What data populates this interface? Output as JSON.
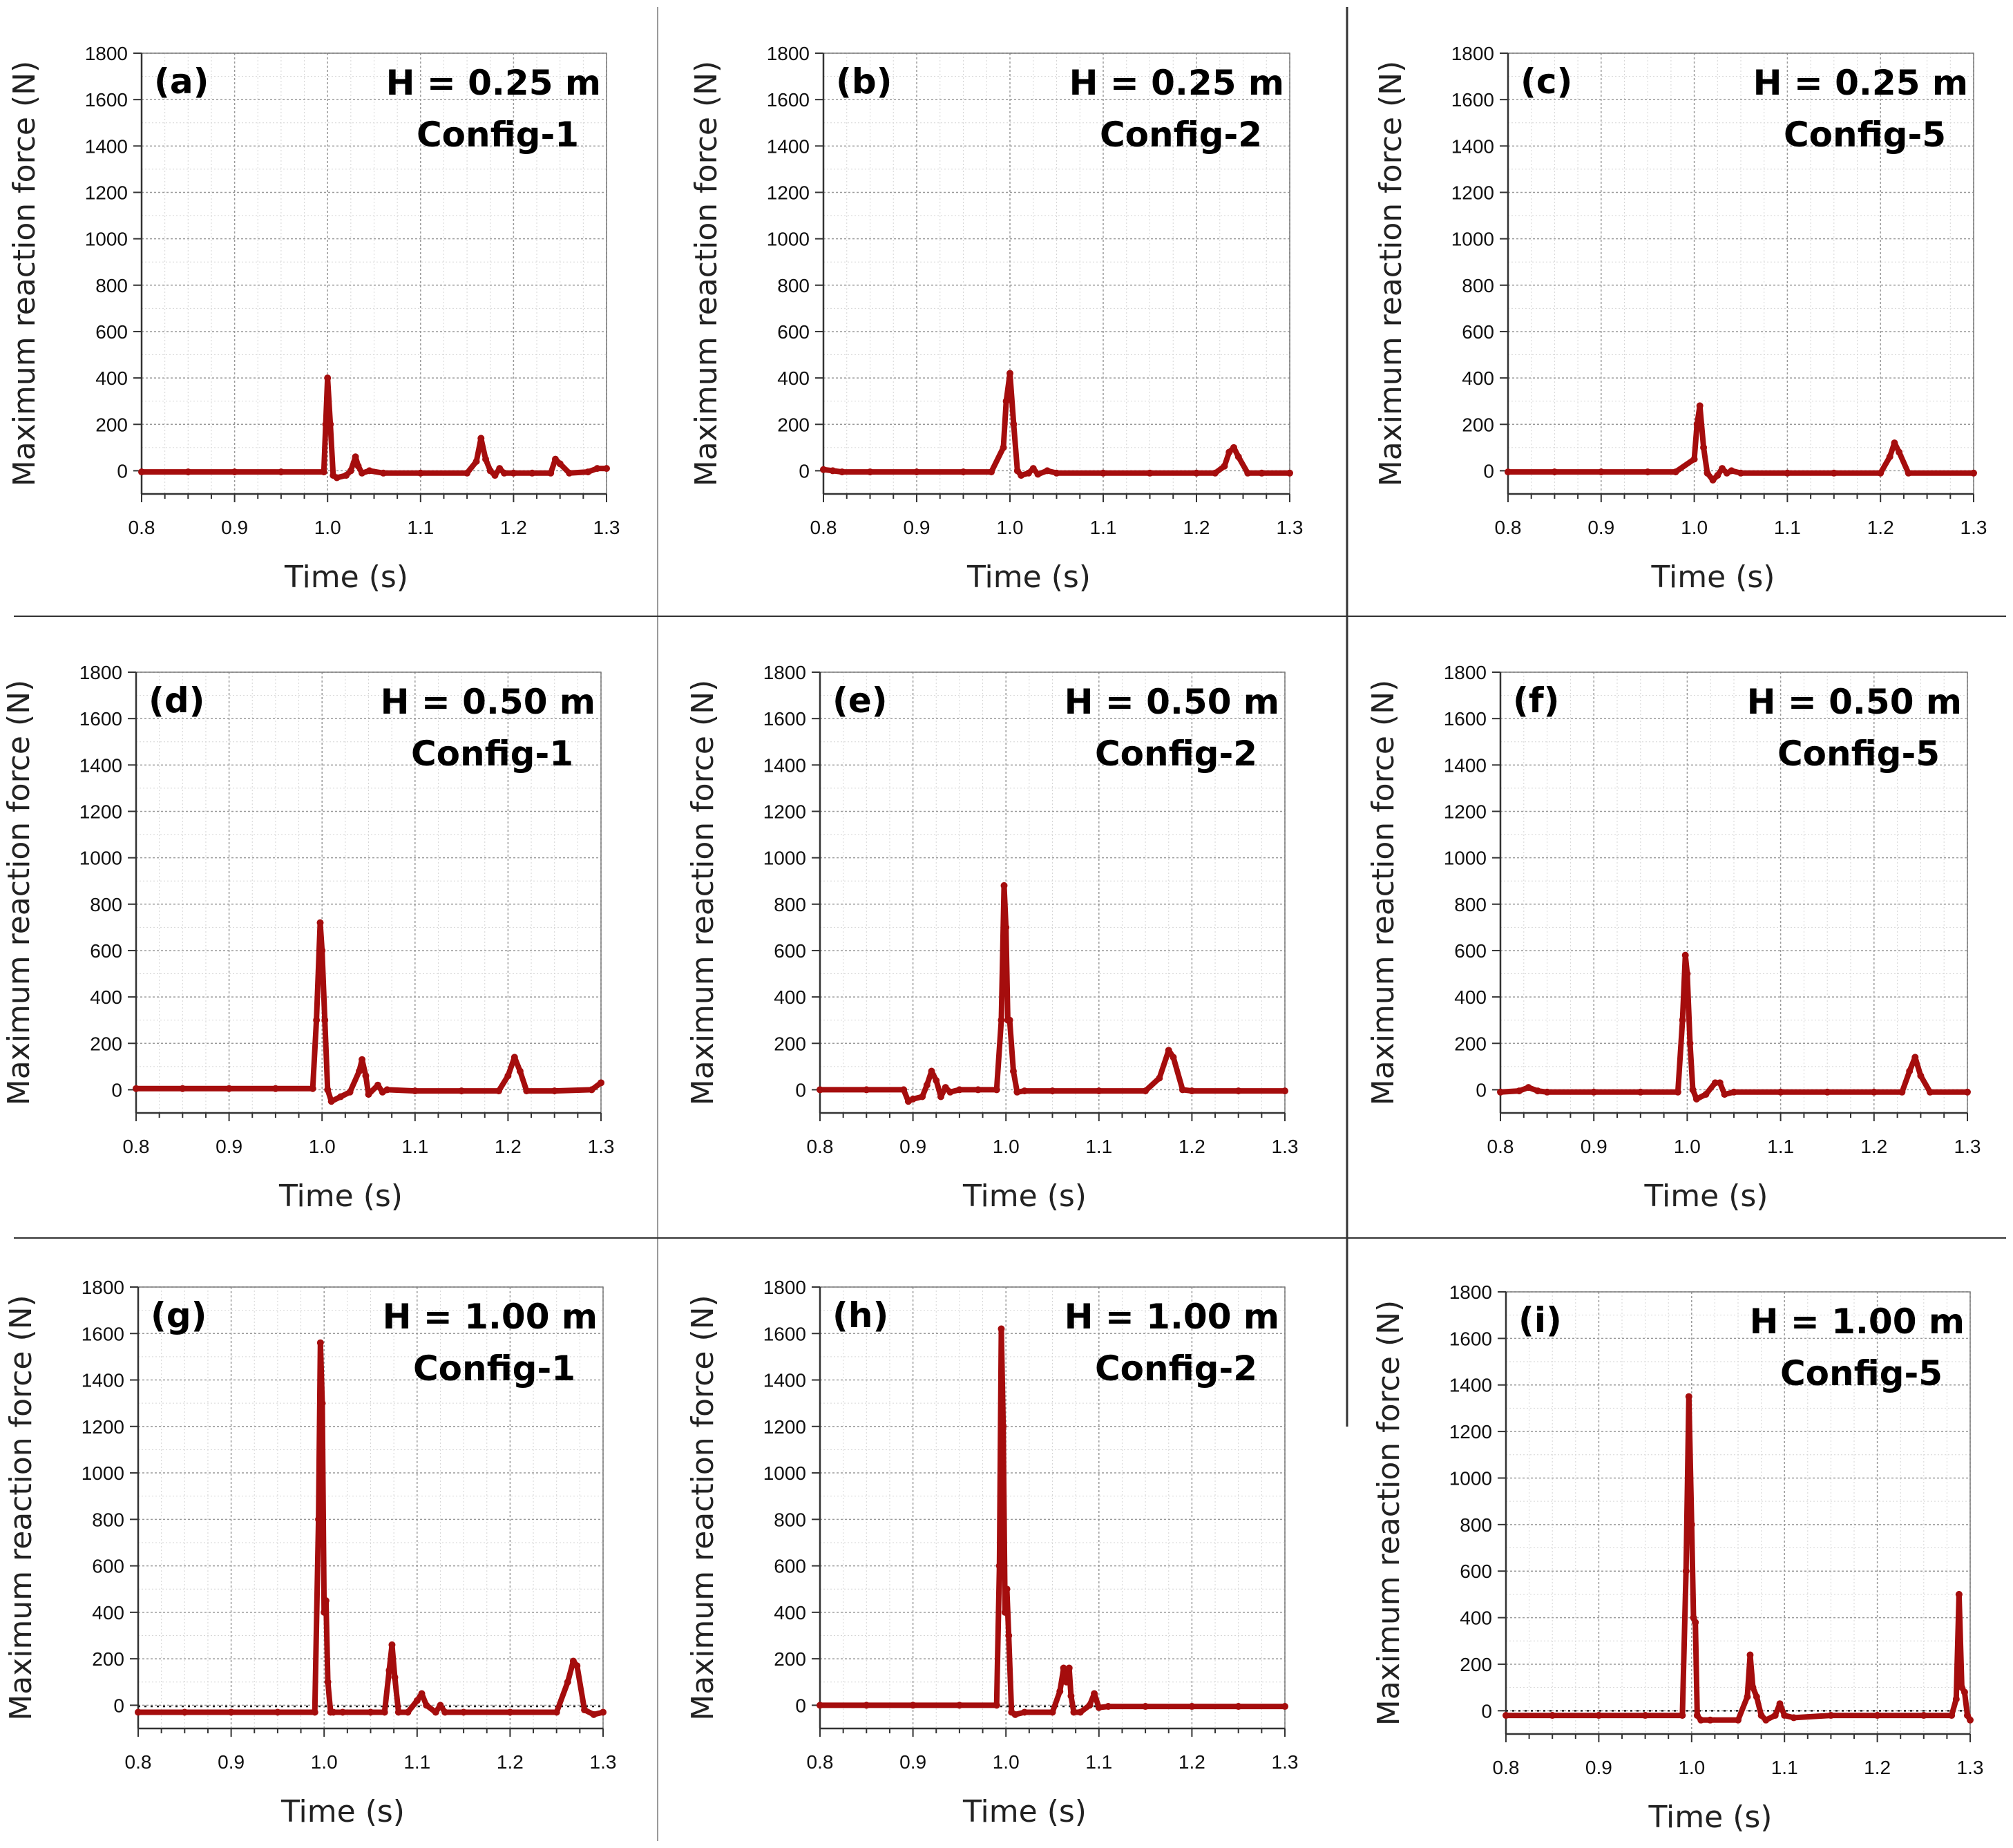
{
  "figure": {
    "colors": {
      "series": "#a50d0d",
      "grid": "#9a9a9a",
      "axis": "#333333",
      "text": "#111111"
    }
  },
  "chart_data": [
    {
      "panel": "(a)",
      "height_label": "H = 0.25 m",
      "config_label": "Config-1",
      "type": "line",
      "xlabel": "Time (s)",
      "ylabel": "Maximum reaction force (N)",
      "xlim": [
        0.8,
        1.3
      ],
      "ylim": [
        -100,
        1800
      ],
      "xticks": [
        "0.8",
        "0.9",
        "1.0",
        "1.1",
        "1.2",
        "1.3"
      ],
      "yticks": [
        "0",
        "200",
        "400",
        "600",
        "800",
        "1000",
        "1200",
        "1400",
        "1600",
        "1800"
      ],
      "series": [
        {
          "name": "reaction force",
          "x": [
            0.8,
            0.85,
            0.9,
            0.95,
            0.996,
            0.998,
            1.0,
            1.003,
            1.006,
            1.01,
            1.02,
            1.025,
            1.03,
            1.033,
            1.037,
            1.045,
            1.06,
            1.1,
            1.15,
            1.16,
            1.165,
            1.17,
            1.175,
            1.18,
            1.185,
            1.19,
            1.2,
            1.22,
            1.24,
            1.245,
            1.25,
            1.26,
            1.28,
            1.29,
            1.3
          ],
          "y": [
            -5,
            -5,
            -5,
            -5,
            -5,
            200,
            400,
            200,
            -20,
            -30,
            -20,
            0,
            60,
            20,
            -10,
            0,
            -10,
            -10,
            -10,
            40,
            140,
            50,
            0,
            -20,
            10,
            -10,
            -10,
            -10,
            -10,
            50,
            30,
            -10,
            -5,
            10,
            10
          ]
        }
      ]
    },
    {
      "panel": "(b)",
      "height_label": "H = 0.25 m",
      "config_label": "Config-2",
      "type": "line",
      "xlabel": "Time (s)",
      "ylabel": "Maximum reaction force (N)",
      "xlim": [
        0.8,
        1.3
      ],
      "ylim": [
        -100,
        1800
      ],
      "xticks": [
        "0.8",
        "0.9",
        "1.0",
        "1.1",
        "1.2",
        "1.3"
      ],
      "yticks": [
        "0",
        "200",
        "400",
        "600",
        "800",
        "1000",
        "1200",
        "1400",
        "1600",
        "1800"
      ],
      "series": [
        {
          "name": "reaction force",
          "x": [
            0.8,
            0.81,
            0.82,
            0.85,
            0.9,
            0.95,
            0.98,
            0.993,
            0.996,
            1.0,
            1.004,
            1.008,
            1.012,
            1.02,
            1.025,
            1.03,
            1.04,
            1.05,
            1.1,
            1.15,
            1.2,
            1.22,
            1.23,
            1.235,
            1.24,
            1.245,
            1.255,
            1.27,
            1.3
          ],
          "y": [
            5,
            0,
            -5,
            -5,
            -5,
            -5,
            -5,
            100,
            300,
            420,
            200,
            0,
            -20,
            -10,
            10,
            -15,
            0,
            -10,
            -10,
            -10,
            -10,
            -10,
            20,
            80,
            100,
            60,
            -10,
            -10,
            -10
          ]
        }
      ]
    },
    {
      "panel": "(c)",
      "height_label": "H = 0.25 m",
      "config_label": "Config-5",
      "type": "line",
      "xlabel": "Time (s)",
      "ylabel": "Maximum reaction force (N)",
      "xlim": [
        0.8,
        1.3
      ],
      "ylim": [
        -100,
        1800
      ],
      "xticks": [
        "0.8",
        "0.9",
        "1.0",
        "1.1",
        "1.2",
        "1.3"
      ],
      "yticks": [
        "0",
        "200",
        "400",
        "600",
        "800",
        "1000",
        "1200",
        "1400",
        "1600",
        "1800"
      ],
      "series": [
        {
          "name": "reaction force",
          "x": [
            0.8,
            0.85,
            0.9,
            0.95,
            0.98,
            1.0,
            1.003,
            1.006,
            1.01,
            1.014,
            1.02,
            1.025,
            1.03,
            1.035,
            1.04,
            1.05,
            1.1,
            1.15,
            1.2,
            1.21,
            1.215,
            1.22,
            1.23,
            1.3
          ],
          "y": [
            -5,
            -5,
            -5,
            -5,
            -5,
            50,
            200,
            280,
            100,
            -10,
            -40,
            -20,
            10,
            -10,
            0,
            -10,
            -10,
            -10,
            -10,
            60,
            120,
            80,
            -10,
            -10
          ]
        }
      ]
    },
    {
      "panel": "(d)",
      "height_label": "H = 0.50 m",
      "config_label": "Config-1",
      "type": "line",
      "xlabel": "Time (s)",
      "ylabel": "Maximum reaction force (N)",
      "xlim": [
        0.8,
        1.3
      ],
      "ylim": [
        -100,
        1800
      ],
      "xticks": [
        "0.8",
        "0.9",
        "1.0",
        "1.1",
        "1.2",
        "1.3"
      ],
      "yticks": [
        "0",
        "200",
        "400",
        "600",
        "800",
        "1000",
        "1200",
        "1400",
        "1600",
        "1800"
      ],
      "series": [
        {
          "name": "reaction force",
          "x": [
            0.8,
            0.85,
            0.9,
            0.95,
            0.99,
            0.994,
            0.998,
            1.0,
            1.003,
            1.006,
            1.01,
            1.02,
            1.03,
            1.04,
            1.043,
            1.047,
            1.05,
            1.06,
            1.065,
            1.07,
            1.1,
            1.15,
            1.19,
            1.2,
            1.207,
            1.213,
            1.22,
            1.25,
            1.29,
            1.3
          ],
          "y": [
            5,
            5,
            5,
            5,
            5,
            300,
            720,
            600,
            300,
            0,
            -50,
            -30,
            -10,
            80,
            130,
            60,
            -20,
            20,
            -10,
            0,
            -5,
            -5,
            -5,
            60,
            140,
            80,
            -5,
            -5,
            0,
            30
          ]
        }
      ]
    },
    {
      "panel": "(e)",
      "height_label": "H = 0.50 m",
      "config_label": "Config-2",
      "type": "line",
      "xlabel": "Time (s)",
      "ylabel": "Maximum reaction force (N)",
      "xlim": [
        0.8,
        1.3
      ],
      "ylim": [
        -100,
        1800
      ],
      "xticks": [
        "0.8",
        "0.9",
        "1.0",
        "1.1",
        "1.2",
        "1.3"
      ],
      "yticks": [
        "0",
        "200",
        "400",
        "600",
        "800",
        "1000",
        "1200",
        "1400",
        "1600",
        "1800"
      ],
      "series": [
        {
          "name": "reaction force",
          "x": [
            0.8,
            0.85,
            0.89,
            0.895,
            0.9,
            0.91,
            0.915,
            0.92,
            0.925,
            0.93,
            0.935,
            0.94,
            0.95,
            0.97,
            0.99,
            0.995,
            0.998,
            1.0,
            1.002,
            1.004,
            1.008,
            1.012,
            1.02,
            1.05,
            1.1,
            1.15,
            1.165,
            1.175,
            1.18,
            1.19,
            1.2,
            1.25,
            1.3
          ],
          "y": [
            0,
            0,
            0,
            -50,
            -40,
            -30,
            20,
            80,
            40,
            -30,
            10,
            -10,
            0,
            0,
            0,
            300,
            880,
            700,
            300,
            300,
            80,
            -10,
            -5,
            -5,
            -5,
            -5,
            50,
            170,
            140,
            0,
            -5,
            -5,
            -5
          ]
        }
      ]
    },
    {
      "panel": "(f)",
      "height_label": "H = 0.50 m",
      "config_label": "Config-5",
      "type": "line",
      "xlabel": "Time (s)",
      "ylabel": "Maximum reaction force (N)",
      "xlim": [
        0.8,
        1.3
      ],
      "ylim": [
        -100,
        1800
      ],
      "xticks": [
        "0.8",
        "0.9",
        "1.0",
        "1.1",
        "1.2",
        "1.3"
      ],
      "yticks": [
        "0",
        "200",
        "400",
        "600",
        "800",
        "1000",
        "1200",
        "1400",
        "1600",
        "1800"
      ],
      "series": [
        {
          "name": "reaction force",
          "x": [
            0.8,
            0.82,
            0.83,
            0.84,
            0.85,
            0.9,
            0.95,
            0.99,
            0.995,
            0.998,
            1.0,
            1.003,
            1.006,
            1.01,
            1.02,
            1.03,
            1.035,
            1.04,
            1.05,
            1.1,
            1.15,
            1.2,
            1.23,
            1.238,
            1.244,
            1.25,
            1.26,
            1.3
          ],
          "y": [
            -10,
            -5,
            10,
            -5,
            -10,
            -10,
            -10,
            -10,
            300,
            580,
            500,
            200,
            0,
            -40,
            -20,
            30,
            30,
            -20,
            -10,
            -10,
            -10,
            -10,
            -10,
            80,
            140,
            60,
            -10,
            -10
          ]
        }
      ]
    },
    {
      "panel": "(g)",
      "height_label": "H = 1.00 m",
      "config_label": "Config-1",
      "type": "line",
      "xlabel": "Time (s)",
      "ylabel": "Maximum reaction force (N)",
      "xlim": [
        0.8,
        1.3
      ],
      "ylim": [
        -100,
        1800
      ],
      "xticks": [
        "0.8",
        "0.9",
        "1.0",
        "1.1",
        "1.2",
        "1.3"
      ],
      "yticks": [
        "0",
        "200",
        "400",
        "600",
        "800",
        "1000",
        "1200",
        "1400",
        "1600",
        "1800"
      ],
      "series": [
        {
          "name": "reaction force",
          "x": [
            0.8,
            0.85,
            0.9,
            0.95,
            0.99,
            0.994,
            0.996,
            0.998,
            1.0,
            1.002,
            1.004,
            1.007,
            1.01,
            1.02,
            1.05,
            1.065,
            1.07,
            1.073,
            1.076,
            1.08,
            1.09,
            1.1,
            1.105,
            1.11,
            1.12,
            1.125,
            1.13,
            1.15,
            1.2,
            1.25,
            1.262,
            1.268,
            1.272,
            1.28,
            1.29,
            1.3
          ],
          "y": [
            -30,
            -30,
            -30,
            -30,
            -30,
            800,
            1560,
            1300,
            400,
            450,
            100,
            -30,
            -30,
            -30,
            -30,
            -30,
            150,
            260,
            120,
            -30,
            -30,
            20,
            50,
            0,
            -30,
            0,
            -30,
            -30,
            -30,
            -30,
            100,
            190,
            170,
            -20,
            -40,
            -30
          ]
        }
      ],
      "reference_line": {
        "y": -5,
        "style": "dotted"
      }
    },
    {
      "panel": "(h)",
      "height_label": "H = 1.00 m",
      "config_label": "Config-2",
      "type": "line",
      "xlabel": "Time (s)",
      "ylabel": "Maximum reaction force (N)",
      "xlim": [
        0.8,
        1.3
      ],
      "ylim": [
        -100,
        1800
      ],
      "xticks": [
        "0.8",
        "0.9",
        "1.0",
        "1.1",
        "1.2",
        "1.3"
      ],
      "yticks": [
        "0",
        "200",
        "400",
        "600",
        "800",
        "1000",
        "1200",
        "1400",
        "1600",
        "1800"
      ],
      "series": [
        {
          "name": "reaction force",
          "x": [
            0.8,
            0.85,
            0.9,
            0.95,
            0.99,
            0.993,
            0.995,
            0.997,
            0.999,
            1.001,
            1.003,
            1.006,
            1.01,
            1.02,
            1.05,
            1.058,
            1.062,
            1.065,
            1.068,
            1.07,
            1.073,
            1.08,
            1.09,
            1.095,
            1.1,
            1.11,
            1.15,
            1.2,
            1.25,
            1.3
          ],
          "y": [
            0,
            0,
            0,
            0,
            0,
            600,
            1620,
            1200,
            400,
            500,
            300,
            -30,
            -40,
            -30,
            -30,
            60,
            160,
            100,
            160,
            40,
            -30,
            -30,
            0,
            50,
            -10,
            -5,
            -5,
            -5,
            -5,
            -5
          ]
        }
      ],
      "reference_line": {
        "y": -5,
        "style": "dotted"
      }
    },
    {
      "panel": "(i)",
      "height_label": "H = 1.00 m",
      "config_label": "Config-5",
      "type": "line",
      "xlabel": "Time (s)",
      "ylabel": "Maximum reaction force (N)",
      "xlim": [
        0.8,
        1.3
      ],
      "ylim": [
        -100,
        1800
      ],
      "xticks": [
        "0.8",
        "0.9",
        "1.0",
        "1.1",
        "1.2",
        "1.3"
      ],
      "yticks": [
        "0",
        "200",
        "400",
        "600",
        "800",
        "1000",
        "1200",
        "1400",
        "1600",
        "1800"
      ],
      "series": [
        {
          "name": "reaction force",
          "x": [
            0.8,
            0.85,
            0.9,
            0.95,
            0.99,
            0.994,
            0.997,
            1.0,
            1.002,
            1.004,
            1.006,
            1.01,
            1.02,
            1.05,
            1.06,
            1.063,
            1.066,
            1.07,
            1.075,
            1.08,
            1.09,
            1.095,
            1.1,
            1.11,
            1.15,
            1.2,
            1.25,
            1.28,
            1.285,
            1.288,
            1.291,
            1.294,
            1.297,
            1.3
          ],
          "y": [
            -20,
            -20,
            -20,
            -20,
            -20,
            600,
            1350,
            800,
            400,
            380,
            -20,
            -40,
            -40,
            -40,
            60,
            240,
            100,
            60,
            -20,
            -40,
            -20,
            30,
            -20,
            -30,
            -20,
            -20,
            -20,
            -20,
            50,
            500,
            100,
            80,
            -20,
            -40
          ]
        }
      ],
      "reference_line": {
        "y": 0,
        "style": "dotted"
      }
    }
  ]
}
